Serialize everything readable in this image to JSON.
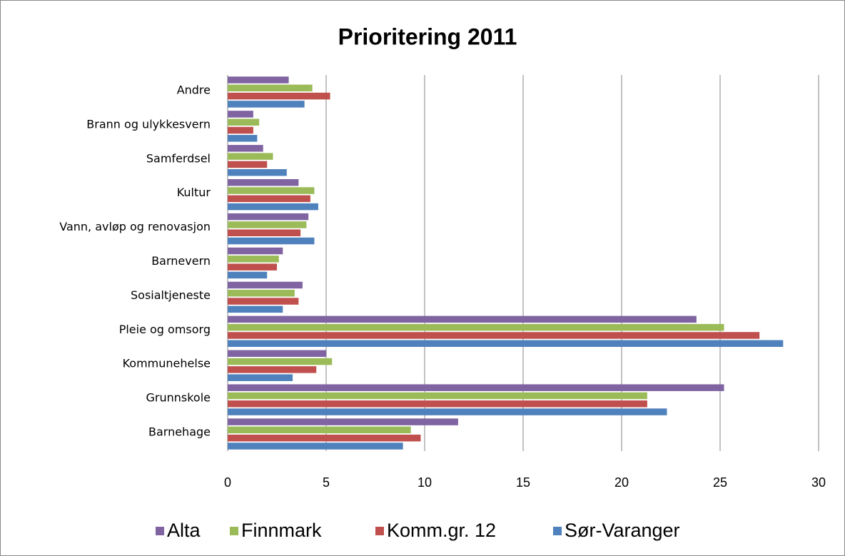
{
  "chart_data": {
    "type": "bar",
    "orientation": "horizontal",
    "title": "Prioritering 2011",
    "categories": [
      "Barnehage",
      "Grunnskole",
      "Kommunehelse",
      "Pleie og omsorg",
      "Sosialtjeneste",
      "Barnevern",
      "Vann, avløp og renovasjon",
      "Kultur",
      "Samferdsel",
      "Brann og ulykkesvern",
      "Andre"
    ],
    "series": [
      {
        "name": "Alta",
        "color": "#8064a2",
        "values": [
          11.7,
          25.2,
          5.0,
          23.8,
          3.8,
          2.8,
          4.1,
          3.6,
          1.8,
          1.3,
          3.1
        ]
      },
      {
        "name": "Finnmark",
        "color": "#9bbb59",
        "values": [
          9.3,
          21.3,
          5.3,
          25.2,
          3.4,
          2.6,
          4.0,
          4.4,
          2.3,
          1.6,
          4.3
        ]
      },
      {
        "name": "Komm.gr. 12",
        "color": "#c0504d",
        "values": [
          9.8,
          21.3,
          4.5,
          27.0,
          3.6,
          2.5,
          3.7,
          4.2,
          2.0,
          1.3,
          5.2
        ]
      },
      {
        "name": "Sør-Varanger",
        "color": "#4f81bd",
        "values": [
          8.9,
          22.3,
          3.3,
          28.2,
          2.8,
          2.0,
          4.4,
          4.6,
          3.0,
          1.5,
          3.9
        ]
      }
    ],
    "xlim": [
      0,
      30
    ],
    "xticks": [
      0,
      5,
      10,
      15,
      20,
      25,
      30
    ],
    "grid": true,
    "legend": "bottom"
  }
}
